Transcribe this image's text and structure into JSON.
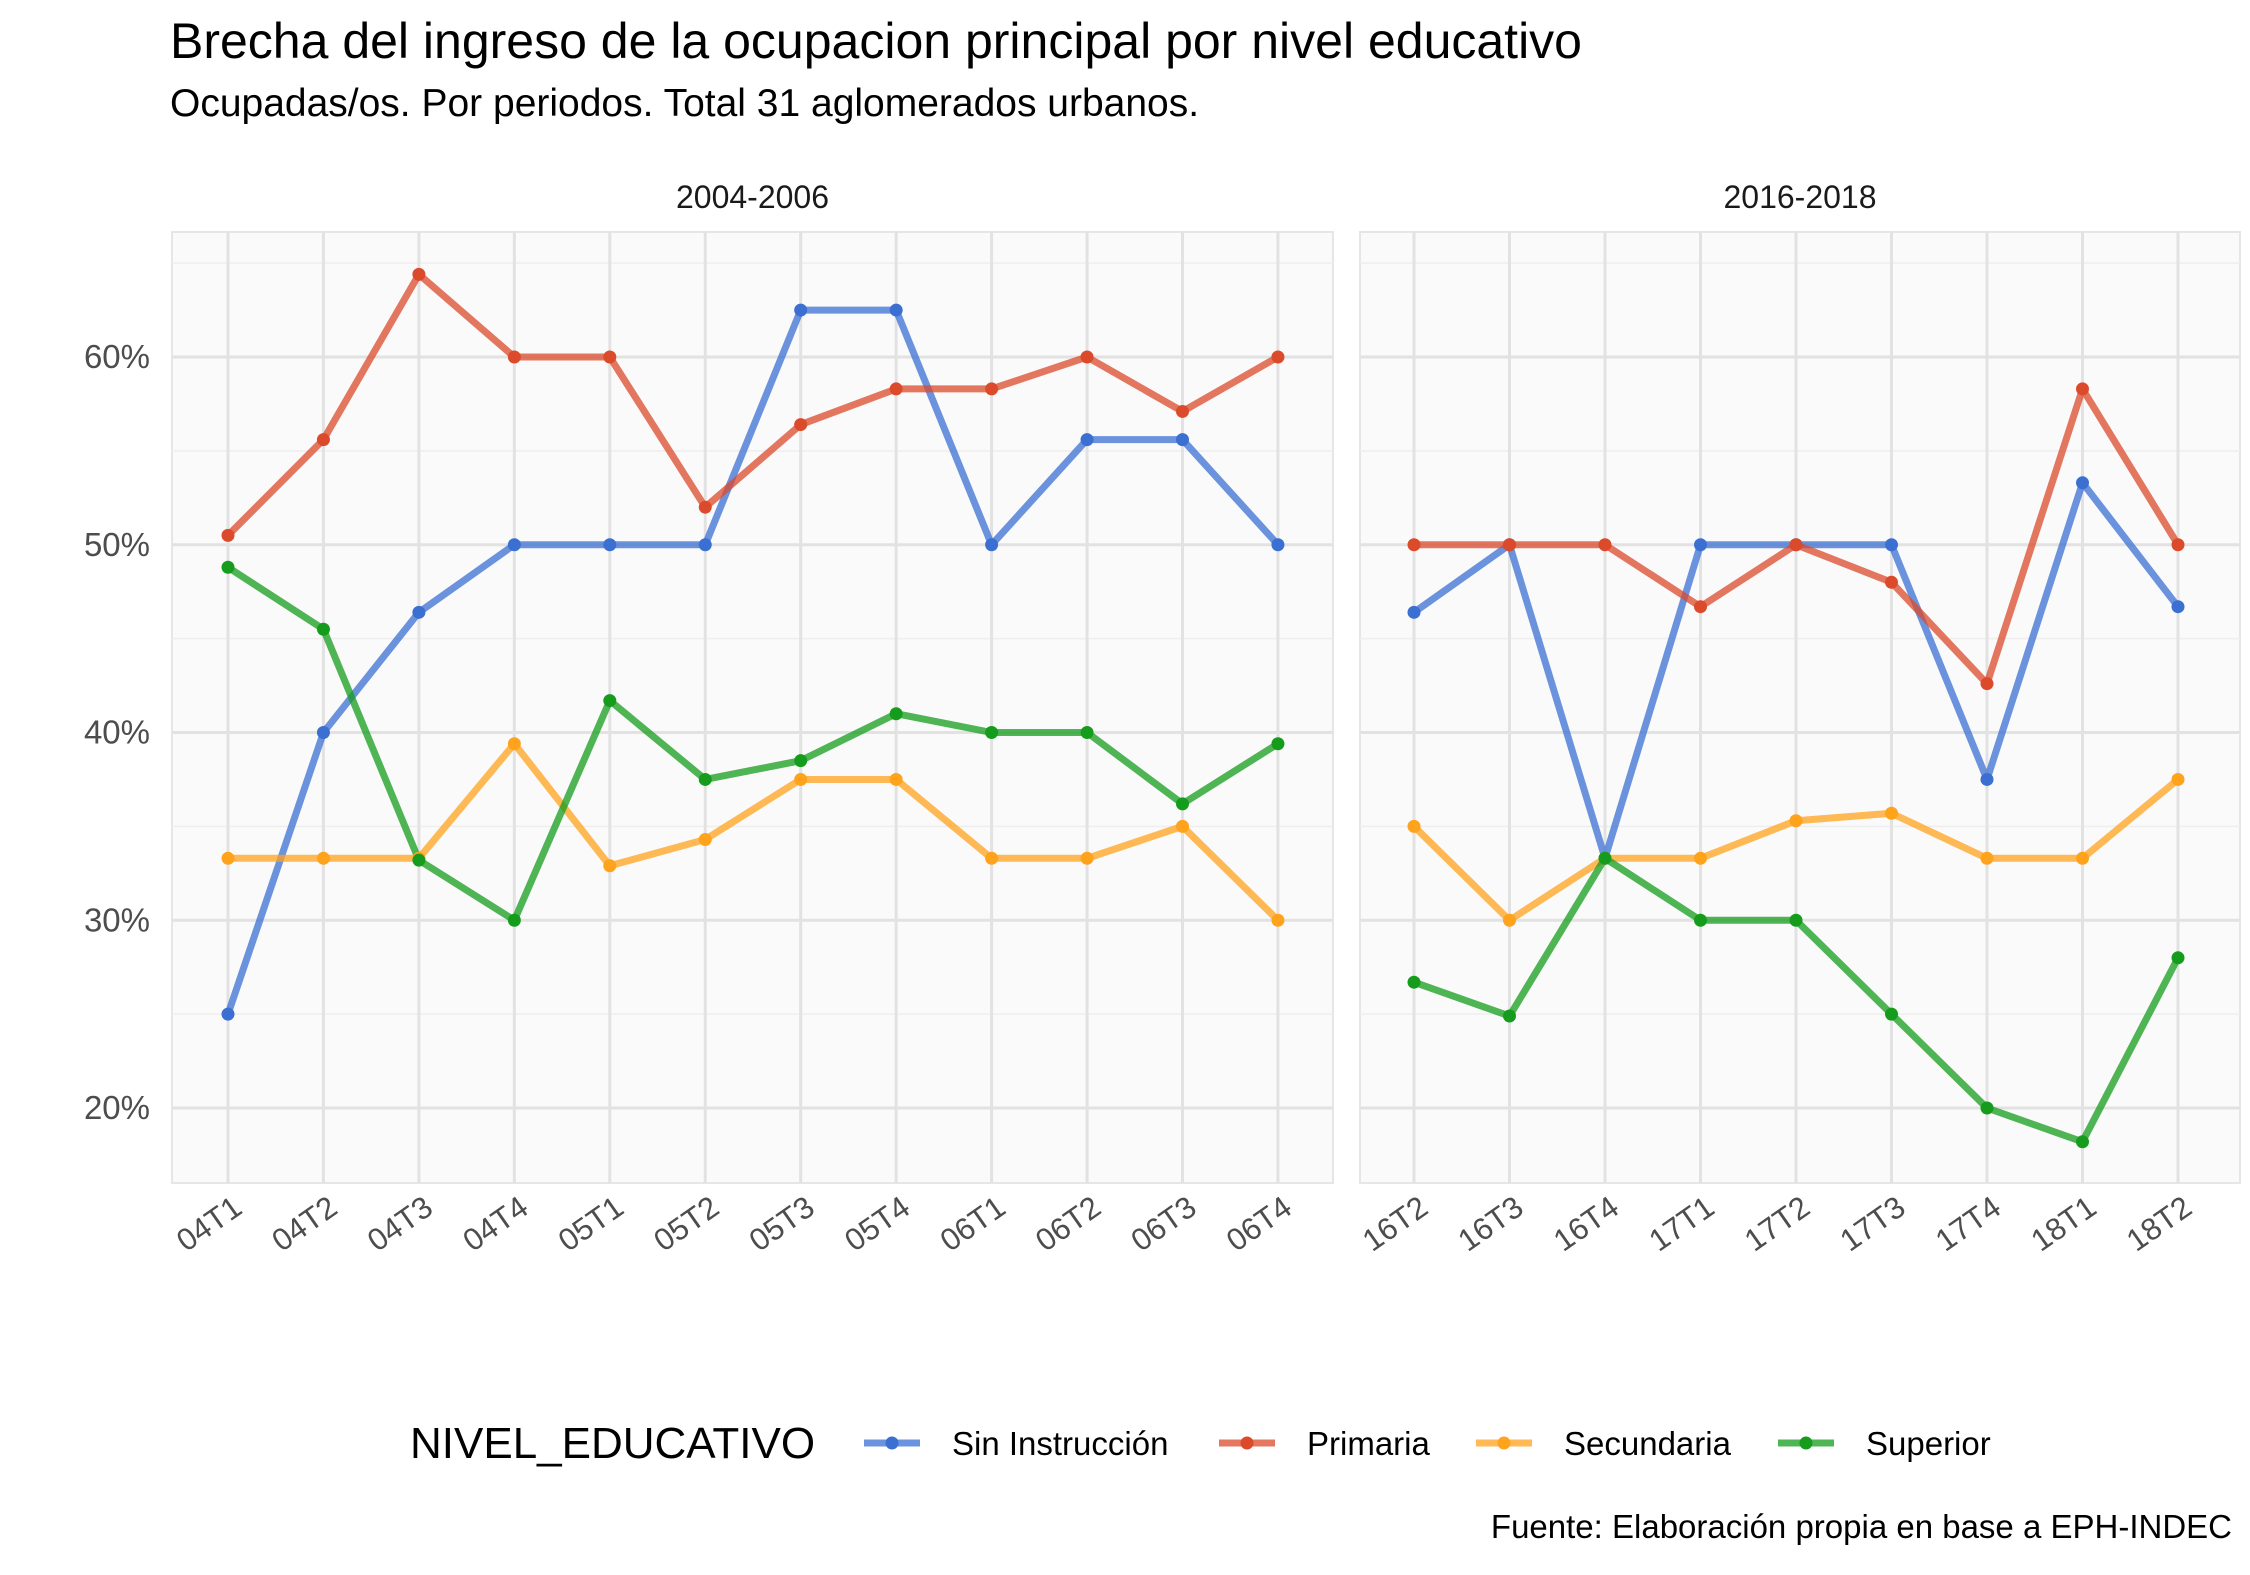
{
  "title": "Brecha del ingreso de la ocupacion principal por nivel educativo",
  "subtitle": "Ocupadas/os. Por periodos. Total 31 aglomerados urbanos.",
  "caption": "Fuente: Elaboración propia en base a EPH-INDEC",
  "colors": {
    "Sin Instrucción": "#3b6fd1",
    "Primaria": "#db4a2b",
    "Secundaria": "#ffa21c",
    "Superior": "#169c1c"
  },
  "chart_data": {
    "type": "line",
    "ylabel": "",
    "xlabel": "",
    "y_ticks": [
      "20%",
      "30%",
      "40%",
      "50%",
      "60%"
    ],
    "y_tick_values": [
      20,
      30,
      40,
      50,
      60
    ],
    "ylim": [
      16,
      66.5
    ],
    "grid": true,
    "legend": {
      "title": "NIVEL_EDUCATIVO",
      "position": "bottom",
      "entries": [
        "Sin Instrucción",
        "Primaria",
        "Secundaria",
        "Superior"
      ]
    },
    "facets": [
      {
        "label": "2004-2006",
        "categories": [
          "04T1",
          "04T2",
          "04T3",
          "04T4",
          "05T1",
          "05T2",
          "05T3",
          "05T4",
          "06T1",
          "06T2",
          "06T3",
          "06T4"
        ],
        "series": [
          {
            "name": "Sin Instrucción",
            "values": [
              25.0,
              40.0,
              46.4,
              50.0,
              50.0,
              50.0,
              62.5,
              62.5,
              50.0,
              55.6,
              55.6,
              50.0
            ]
          },
          {
            "name": "Primaria",
            "values": [
              50.5,
              55.6,
              64.4,
              60.0,
              60.0,
              52.0,
              56.4,
              58.3,
              58.3,
              60.0,
              57.1,
              60.0
            ]
          },
          {
            "name": "Secundaria",
            "values": [
              33.3,
              33.3,
              33.3,
              39.4,
              32.9,
              34.3,
              37.5,
              37.5,
              33.3,
              33.3,
              35.0,
              30.0
            ]
          },
          {
            "name": "Superior",
            "values": [
              48.8,
              45.5,
              33.2,
              30.0,
              41.7,
              37.5,
              38.5,
              41.0,
              40.0,
              40.0,
              36.2,
              39.4
            ]
          }
        ]
      },
      {
        "label": "2016-2018",
        "categories": [
          "16T2",
          "16T3",
          "16T4",
          "17T1",
          "17T2",
          "17T3",
          "17T4",
          "18T1",
          "18T2"
        ],
        "series": [
          {
            "name": "Sin Instrucción",
            "values": [
              46.4,
              50.0,
              33.3,
              50.0,
              50.0,
              50.0,
              37.5,
              53.3,
              46.7
            ]
          },
          {
            "name": "Primaria",
            "values": [
              50.0,
              50.0,
              50.0,
              46.7,
              50.0,
              48.0,
              42.6,
              58.3,
              50.0
            ]
          },
          {
            "name": "Secundaria",
            "values": [
              35.0,
              30.0,
              33.3,
              33.3,
              35.3,
              35.7,
              33.3,
              33.3,
              37.5
            ]
          },
          {
            "name": "Superior",
            "values": [
              26.7,
              24.9,
              33.3,
              30.0,
              30.0,
              25.0,
              20.0,
              18.2,
              28.0
            ]
          }
        ]
      }
    ]
  }
}
